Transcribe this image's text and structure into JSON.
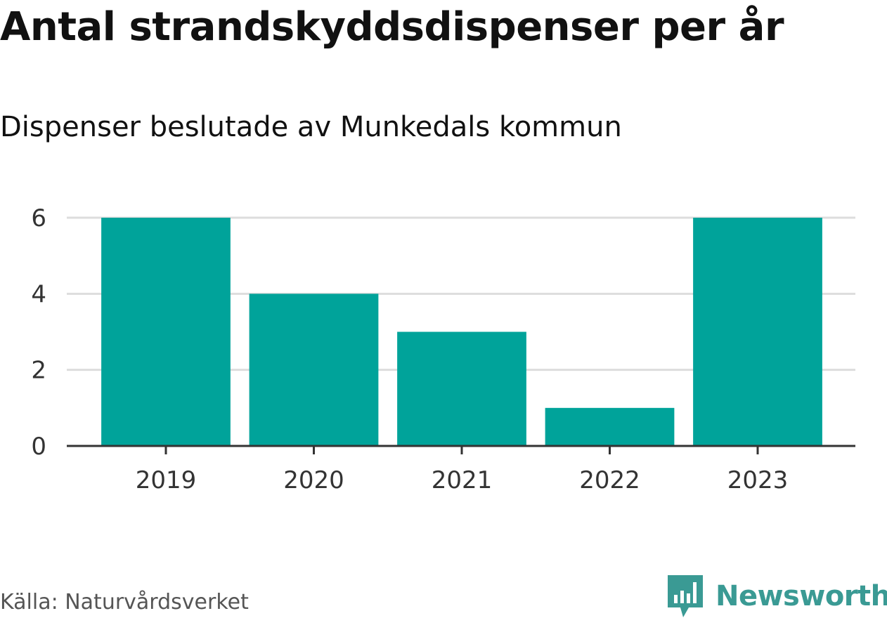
{
  "chart_data": {
    "type": "bar",
    "title": "Antal strandskyddsdispenser per år",
    "subtitle": "Dispenser beslutade av Munkedals kommun",
    "categories": [
      "2019",
      "2020",
      "2021",
      "2022",
      "2023"
    ],
    "values": [
      6,
      4,
      3,
      1,
      6
    ],
    "yticks": [
      "0",
      "2",
      "4",
      "6"
    ],
    "ylim": [
      0,
      6
    ],
    "xlabel": "",
    "ylabel": "",
    "grid": true,
    "legend": "none",
    "bar_color": "#00a39a"
  },
  "footer": {
    "source": "Källa: Naturvårdsverket",
    "brand": "Newsworthy",
    "brand_icon": "newsworthy-logo-icon",
    "brand_color": "#3a9a94"
  }
}
